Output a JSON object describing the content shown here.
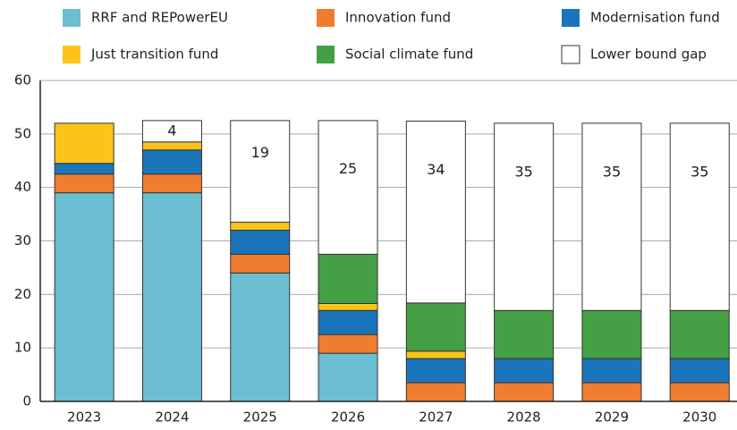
{
  "chart_data": {
    "type": "stacked-bar",
    "categories": [
      "2023",
      "2024",
      "2025",
      "2026",
      "2027",
      "2028",
      "2029",
      "2030"
    ],
    "series": [
      {
        "name": "RRF and REPowerEU",
        "color": "#6bbfd0",
        "values": [
          39,
          39,
          24,
          9,
          null,
          null,
          null,
          null
        ]
      },
      {
        "name": "Innovation fund",
        "color": "#f07d2f",
        "values": [
          3.5,
          3.5,
          3.5,
          3.5,
          3.5,
          3.5,
          3.5,
          3.5
        ]
      },
      {
        "name": "Modernisation fund",
        "color": "#1b75bb",
        "values": [
          2,
          4.5,
          4.5,
          4.5,
          4.5,
          4.5,
          4.5,
          4.5
        ]
      },
      {
        "name": "Just transition fund",
        "color": "#fcc419",
        "values": [
          7.5,
          1.5,
          1.5,
          1.3,
          1.4,
          null,
          null,
          null
        ]
      },
      {
        "name": "Social climate fund",
        "color": "#45a045",
        "values": [
          null,
          null,
          null,
          9.2,
          9,
          9,
          9,
          9
        ]
      },
      {
        "name": "Lower bound gap",
        "color": "#ffffff",
        "values": [
          null,
          4,
          19,
          25,
          34,
          35,
          35,
          35
        ]
      }
    ],
    "ylim": [
      0,
      60
    ],
    "yticks": [
      0,
      10,
      20,
      30,
      40,
      50,
      60
    ],
    "grid": true
  }
}
